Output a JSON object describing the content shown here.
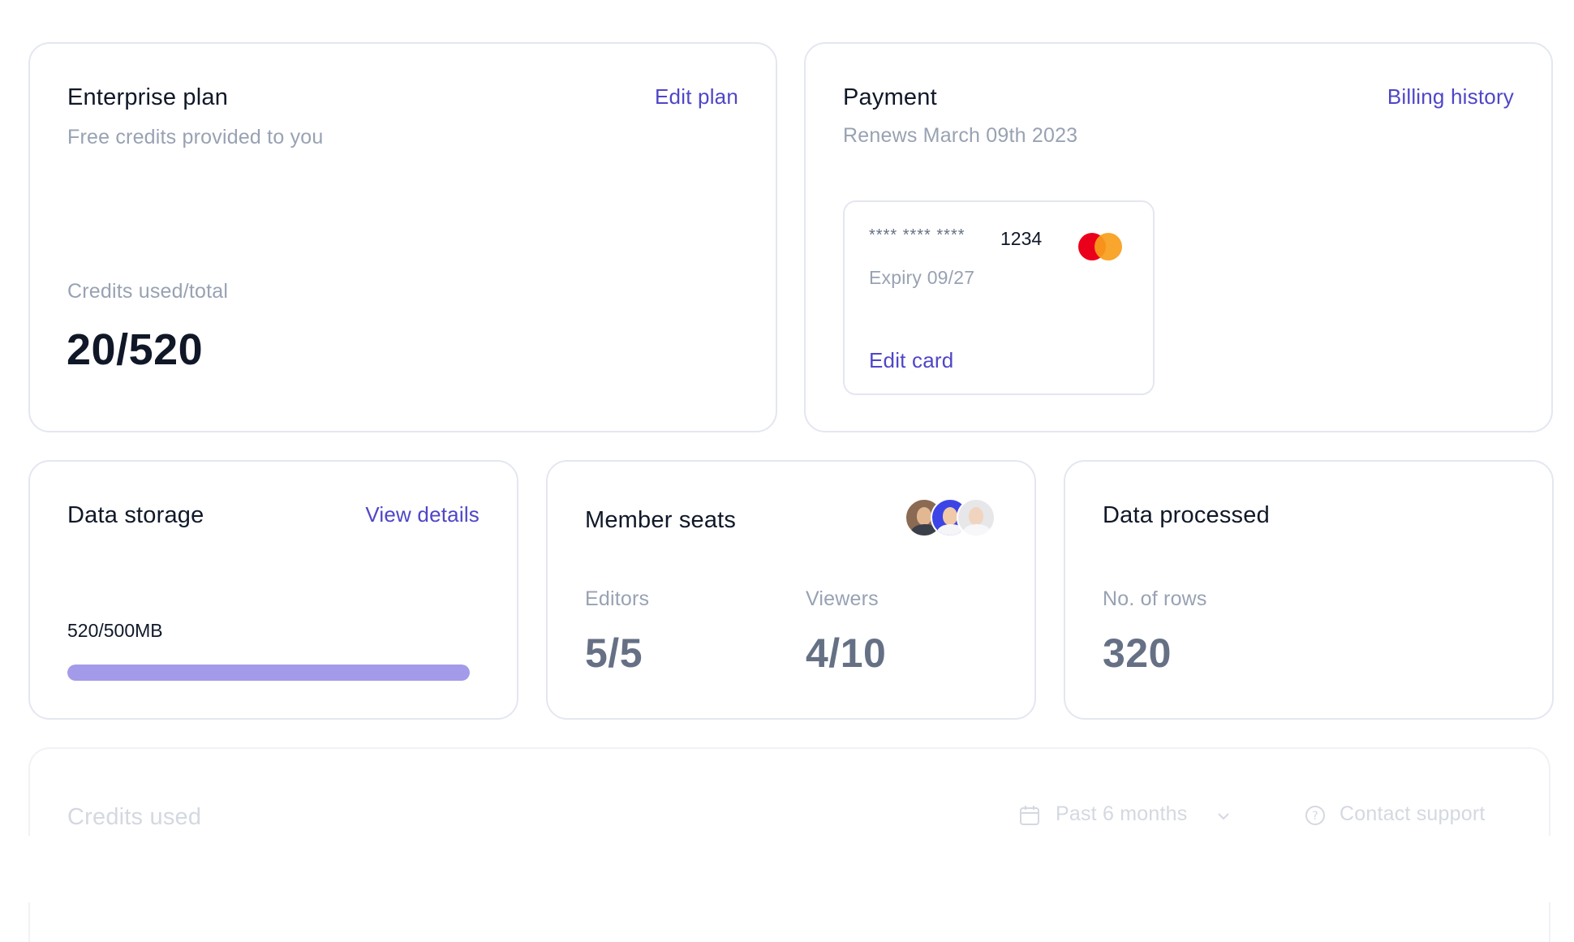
{
  "plan": {
    "title": "Enterprise plan",
    "edit_label": "Edit plan",
    "subtitle": "Free credits provided to you",
    "credits_label": "Credits used/total",
    "credits_value": "20/520"
  },
  "payment": {
    "title": "Payment",
    "billing_label": "Billing history",
    "renews": "Renews March 09th 2023",
    "card": {
      "masked": "**** **** ****",
      "last4": "1234",
      "expiry": "Expiry 09/27",
      "edit_label": "Edit card",
      "brand_icon": "mastercard-icon"
    }
  },
  "storage": {
    "title": "Data storage",
    "details_label": "View details",
    "usage": "520/500MB",
    "progress_fraction": 1.0,
    "accent": "#a39ae9"
  },
  "seats": {
    "title": "Member seats",
    "editors_label": "Editors",
    "editors_value": "5/5",
    "viewers_label": "Viewers",
    "viewers_value": "4/10"
  },
  "processed": {
    "title": "Data processed",
    "rows_label": "No. of rows",
    "rows_value": "320"
  },
  "credits_used": {
    "title": "Credits used",
    "range_label": "Past 6 months",
    "support_label": "Contact support"
  },
  "colors": {
    "link": "#4f46c8",
    "muted": "#98a2b3",
    "border": "#e4e7f0"
  }
}
